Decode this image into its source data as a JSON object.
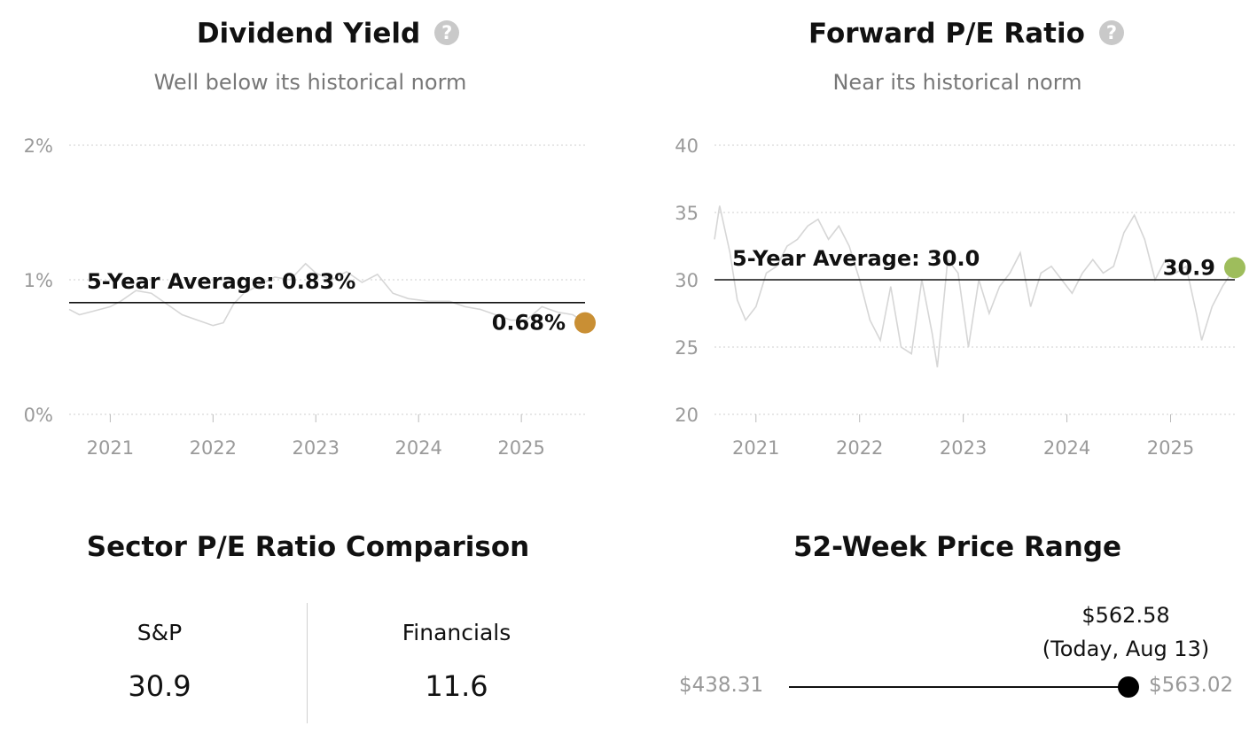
{
  "colors": {
    "yield_marker": "#c98f34",
    "pe_marker": "#9ebd5c",
    "history_line": "#d6d6d6",
    "grid": "#cfcfcf"
  },
  "dividend_yield": {
    "title": "Dividend Yield",
    "help_icon": "question-circle-icon",
    "subtitle": "Well below its historical norm",
    "average_label": "5-Year Average: 0.83%",
    "current_label": "0.68%"
  },
  "forward_pe": {
    "title": "Forward P/E Ratio",
    "help_icon": "question-circle-icon",
    "subtitle": "Near its historical norm",
    "average_label": "5-Year Average: 30.0",
    "current_label": "30.9"
  },
  "sector_pe": {
    "title": "Sector P/E Ratio Comparison",
    "items": [
      {
        "label": "S&P",
        "value": "30.9"
      },
      {
        "label": "Financials",
        "value": "11.6"
      }
    ]
  },
  "price_range": {
    "title": "52-Week Price Range",
    "low": "$438.31",
    "high": "$563.02",
    "current": "$562.58",
    "current_note": "(Today, Aug 13)",
    "low_value": 438.31,
    "high_value": 563.02,
    "current_value": 562.58
  },
  "chart_data": [
    {
      "type": "line",
      "title": "Dividend Yield",
      "subtitle": "Well below its historical norm",
      "x_ticks": [
        "2021",
        "2022",
        "2023",
        "2024",
        "2025"
      ],
      "y_ticks": [
        "0%",
        "1%",
        "2%"
      ],
      "ylim": [
        0,
        2
      ],
      "xlim": [
        2020.6,
        2025.62
      ],
      "grid": true,
      "reference_line": {
        "label": "5-Year Average: 0.83%",
        "value": 0.83
      },
      "current": {
        "label": "0.68%",
        "x": 2025.62,
        "value": 0.68
      },
      "series": [
        {
          "x": [
            2020.6,
            2020.7,
            2020.85,
            2021.0,
            2021.1,
            2021.25,
            2021.4,
            2021.55,
            2021.7,
            2021.85,
            2022.0,
            2022.1,
            2022.2,
            2022.3,
            2022.45,
            2022.6,
            2022.75,
            2022.9,
            2023.0,
            2023.15,
            2023.3,
            2023.45,
            2023.6,
            2023.75,
            2023.9,
            2024.1,
            2024.3,
            2024.45,
            2024.6,
            2024.75,
            2024.9,
            2025.05,
            2025.2,
            2025.35,
            2025.5,
            2025.62
          ],
          "values": [
            0.78,
            0.74,
            0.77,
            0.8,
            0.84,
            0.92,
            0.9,
            0.82,
            0.74,
            0.7,
            0.66,
            0.68,
            0.82,
            0.9,
            0.96,
            1.02,
            1.0,
            1.12,
            1.05,
            1.0,
            1.06,
            0.98,
            1.04,
            0.9,
            0.86,
            0.84,
            0.84,
            0.8,
            0.78,
            0.74,
            0.7,
            0.7,
            0.8,
            0.76,
            0.74,
            0.68
          ]
        }
      ]
    },
    {
      "type": "line",
      "title": "Forward P/E Ratio",
      "subtitle": "Near its historical norm",
      "x_ticks": [
        "2021",
        "2022",
        "2023",
        "2024",
        "2025"
      ],
      "y_ticks": [
        "20",
        "25",
        "30",
        "35",
        "40"
      ],
      "ylim": [
        20,
        40
      ],
      "xlim": [
        2020.6,
        2025.62
      ],
      "grid": true,
      "reference_line": {
        "label": "5-Year Average: 30.0",
        "value": 30.0
      },
      "current": {
        "label": "30.9",
        "x": 2025.62,
        "value": 30.9
      },
      "series": [
        {
          "x": [
            2020.6,
            2020.65,
            2020.75,
            2020.82,
            2020.9,
            2021.0,
            2021.1,
            2021.2,
            2021.3,
            2021.4,
            2021.5,
            2021.6,
            2021.7,
            2021.8,
            2021.9,
            2022.0,
            2022.1,
            2022.2,
            2022.3,
            2022.4,
            2022.5,
            2022.6,
            2022.7,
            2022.75,
            2022.85,
            2022.95,
            2023.05,
            2023.15,
            2023.25,
            2023.35,
            2023.45,
            2023.55,
            2023.65,
            2023.75,
            2023.85,
            2023.95,
            2024.05,
            2024.15,
            2024.25,
            2024.35,
            2024.45,
            2024.55,
            2024.65,
            2024.75,
            2024.85,
            2024.95,
            2025.05,
            2025.15,
            2025.25,
            2025.3,
            2025.4,
            2025.5,
            2025.62
          ],
          "values": [
            33.0,
            35.5,
            32.0,
            28.5,
            27.0,
            28.0,
            30.5,
            31.0,
            32.5,
            33.0,
            34.0,
            34.5,
            33.0,
            34.0,
            32.5,
            30.0,
            27.0,
            25.5,
            29.5,
            25.0,
            24.5,
            30.0,
            26.0,
            23.5,
            31.5,
            30.5,
            25.0,
            30.0,
            27.5,
            29.5,
            30.5,
            32.0,
            28.0,
            30.5,
            31.0,
            30.0,
            29.0,
            30.5,
            31.5,
            30.5,
            31.0,
            33.5,
            34.8,
            33.0,
            30.0,
            31.5,
            30.5,
            31.0,
            27.5,
            25.5,
            28.0,
            29.5,
            30.9
          ]
        }
      ]
    },
    {
      "type": "table",
      "title": "Sector P/E Ratio Comparison",
      "categories": [
        "S&P",
        "Financials"
      ],
      "values": [
        30.9,
        11.6
      ]
    },
    {
      "type": "range",
      "title": "52-Week Price Range",
      "low": 438.31,
      "high": 563.02,
      "current": 562.58,
      "current_label": "$562.58",
      "current_note": "(Today, Aug 13)"
    }
  ]
}
